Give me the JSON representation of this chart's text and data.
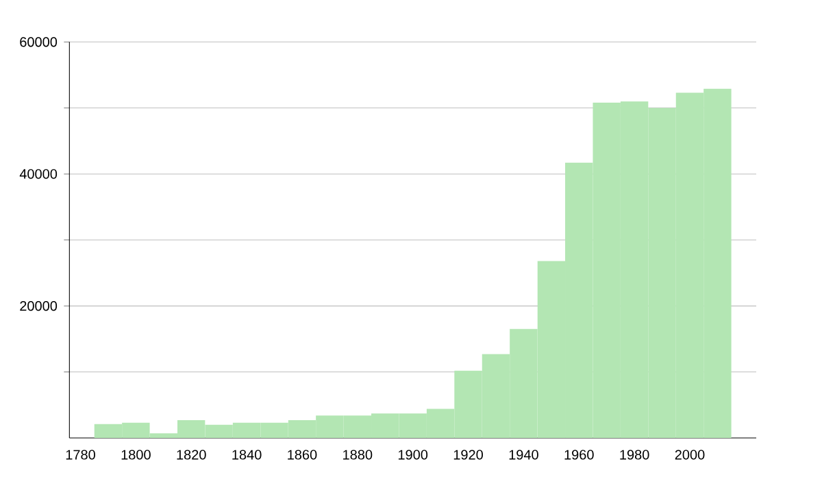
{
  "chart_data": {
    "type": "histogram",
    "color": "#b3e6b3",
    "bins": [
      1785,
      1795,
      1805,
      1815,
      1825,
      1835,
      1845,
      1855,
      1865,
      1875,
      1885,
      1895,
      1905,
      1915,
      1925,
      1935,
      1945,
      1955,
      1965,
      1975,
      1985,
      1995,
      2005,
      2015
    ],
    "values": [
      2100,
      2300,
      700,
      2700,
      2000,
      2300,
      2300,
      2700,
      3400,
      3400,
      3700,
      3700,
      4400,
      10200,
      12700,
      16500,
      26800,
      41700,
      50800,
      51000,
      50000,
      52300,
      52900
    ],
    "xlim": [
      1776,
      2024
    ],
    "xticks": [
      1780,
      1800,
      1820,
      1840,
      1860,
      1880,
      1900,
      1920,
      1940,
      1960,
      1980,
      2000
    ],
    "ylim": [
      0,
      60000
    ],
    "yticks": [
      {
        "value": 10000,
        "label": null
      },
      20000,
      {
        "value": 30000,
        "label": null
      },
      40000,
      {
        "value": 50000,
        "label": null
      },
      60000
    ],
    "grid": "y"
  }
}
